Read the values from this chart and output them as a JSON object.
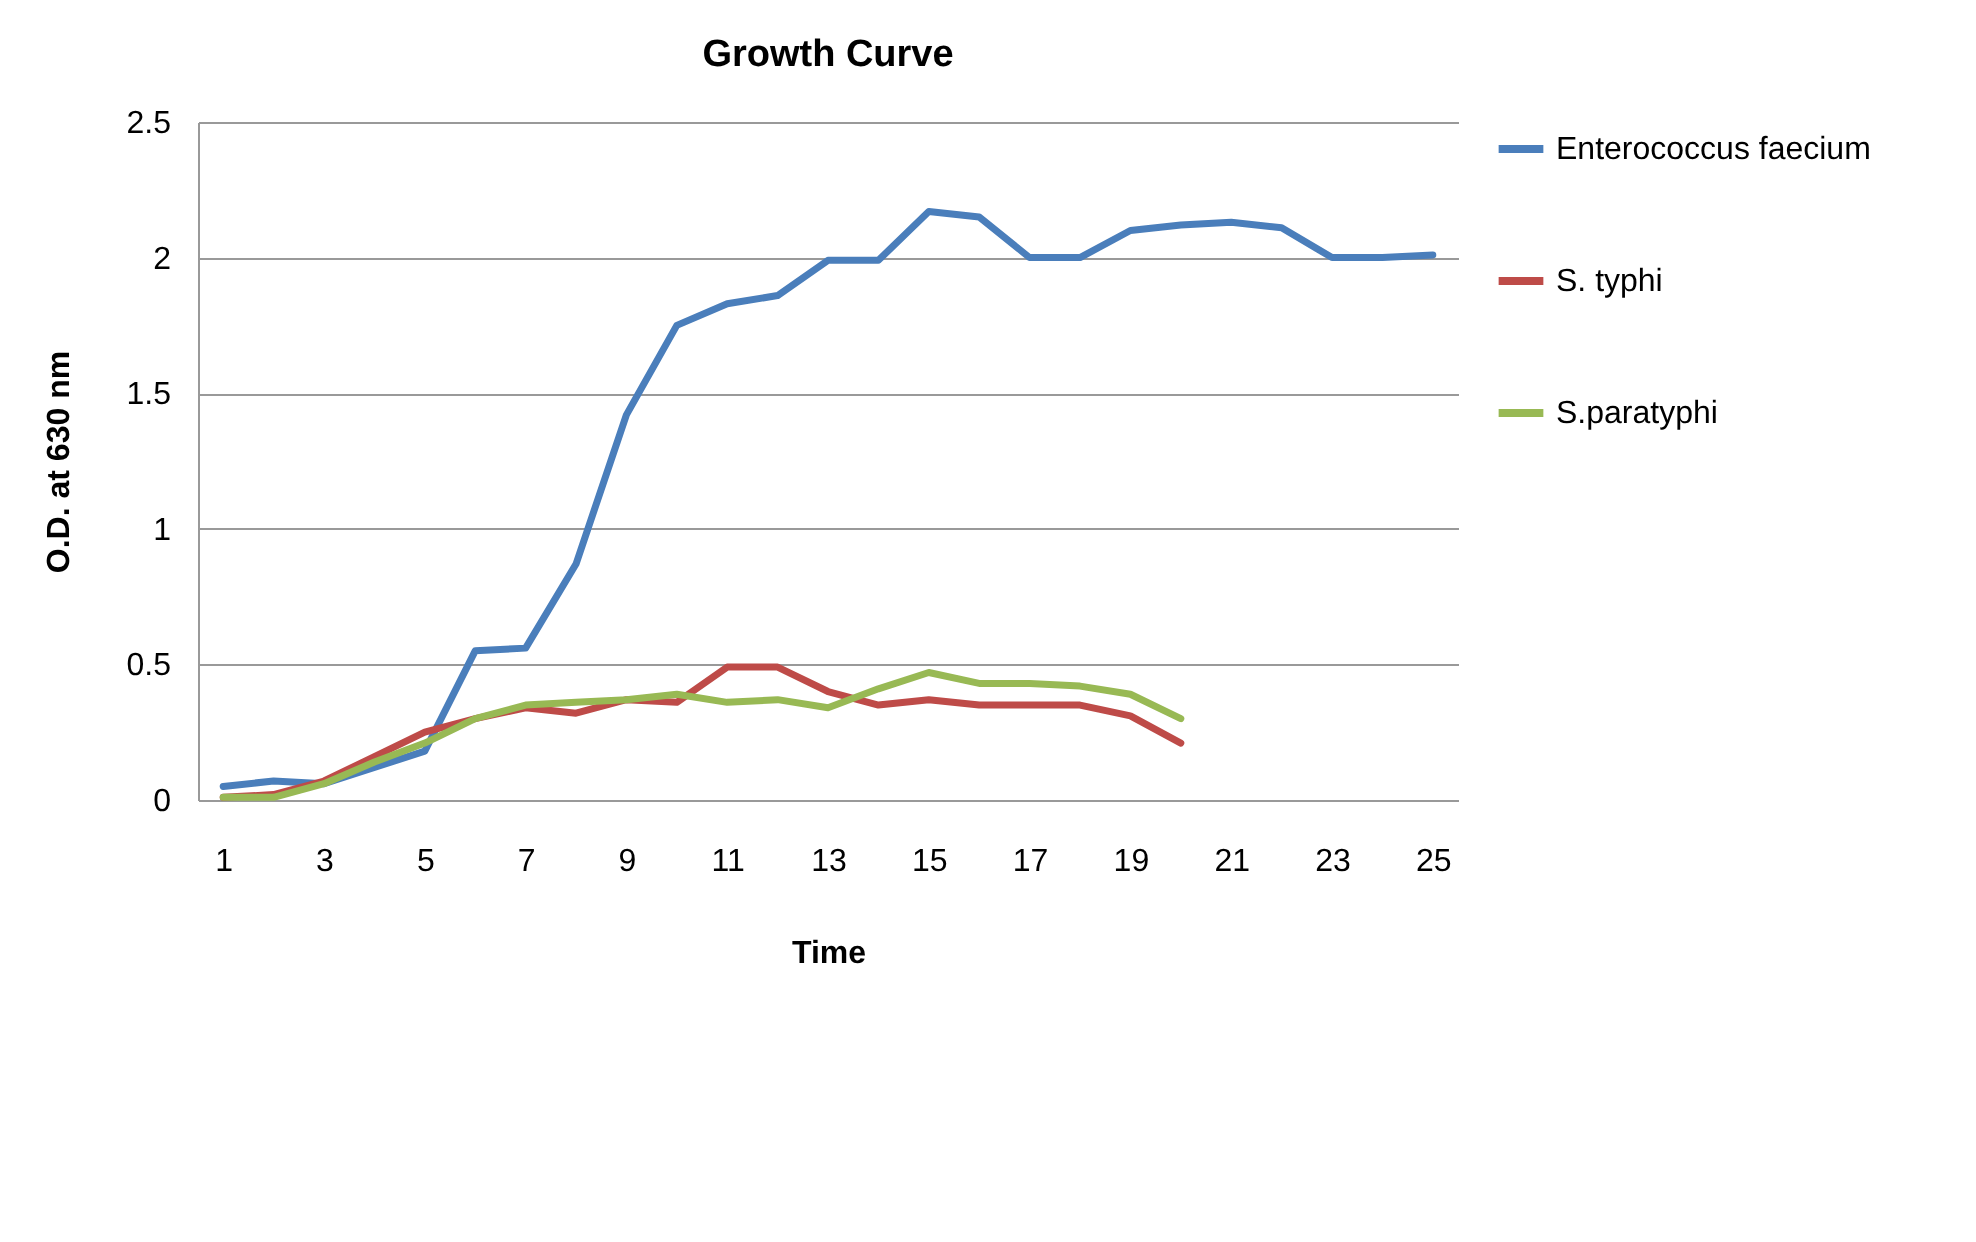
{
  "chart_data": {
    "type": "line",
    "title": "Growth Curve",
    "xlabel": "Time",
    "ylabel": "O.D. at 630 nm",
    "x": [
      1,
      2,
      3,
      4,
      5,
      6,
      7,
      8,
      9,
      10,
      11,
      12,
      13,
      14,
      15,
      16,
      17,
      18,
      19,
      20,
      21,
      22,
      23,
      24,
      25
    ],
    "series": [
      {
        "name": "Enterococcus faecium",
        "color": "#4a7ebb",
        "values": [
          0.05,
          0.07,
          0.06,
          0.12,
          0.18,
          0.55,
          0.56,
          0.87,
          1.42,
          1.75,
          1.83,
          1.86,
          1.99,
          1.99,
          2.17,
          2.15,
          2.0,
          2.0,
          2.1,
          2.12,
          2.13,
          2.11,
          2.0,
          2.0,
          2.01
        ]
      },
      {
        "name": "S. typhi",
        "color": "#be4b48",
        "values": [
          0.01,
          0.02,
          0.07,
          0.16,
          0.25,
          0.3,
          0.34,
          0.32,
          0.37,
          0.36,
          0.49,
          0.49,
          0.4,
          0.35,
          0.37,
          0.35,
          0.35,
          0.35,
          0.31,
          0.21,
          null,
          null,
          null,
          null,
          null
        ]
      },
      {
        "name": "S.paratyphi",
        "color": "#98b954",
        "values": [
          0.01,
          0.01,
          0.06,
          0.14,
          0.21,
          0.3,
          0.35,
          0.36,
          0.37,
          0.39,
          0.36,
          0.37,
          0.34,
          0.41,
          0.47,
          0.43,
          0.43,
          0.42,
          0.39,
          0.3,
          null,
          null,
          null,
          null,
          null
        ]
      }
    ],
    "xlim": [
      0.5,
      25.5
    ],
    "xticks": [
      1,
      3,
      5,
      7,
      9,
      11,
      13,
      15,
      17,
      19,
      21,
      23,
      25
    ],
    "ylim": [
      0,
      2.5
    ],
    "yticks": [
      0,
      0.5,
      1,
      1.5,
      2,
      2.5
    ],
    "grid": "y",
    "legend": "right"
  }
}
